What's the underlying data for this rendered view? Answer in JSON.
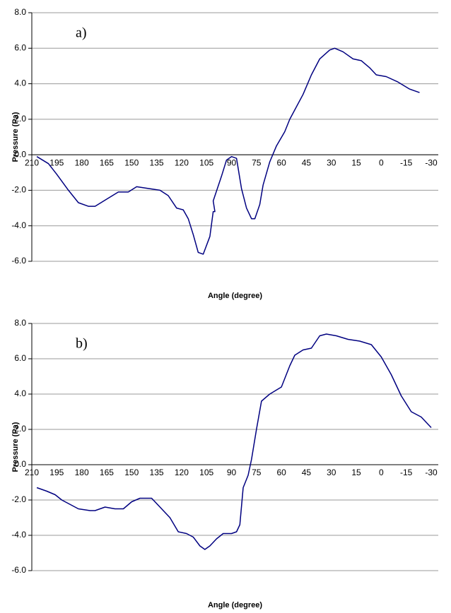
{
  "chart_data": [
    {
      "type": "line",
      "annotation": "a)",
      "xlabel": "Angle (degree)",
      "ylabel": "Pressure (Pa)",
      "color": "#000080",
      "grid": true,
      "xlim": [
        210,
        -30
      ],
      "ylim": [
        -6,
        8
      ],
      "xticks": [
        210,
        195,
        180,
        165,
        150,
        135,
        120,
        105,
        90,
        75,
        60,
        45,
        30,
        15,
        0,
        -15,
        -30
      ],
      "yticks": [
        {
          "value": 8,
          "label": "8.0"
        },
        {
          "value": 6,
          "label": "6.0"
        },
        {
          "value": 4,
          "label": "4.0"
        },
        {
          "value": 2,
          "label": "2.0"
        },
        {
          "value": 0,
          "label": "0.0"
        },
        {
          "value": -2,
          "label": "-2.0"
        },
        {
          "value": -4,
          "label": "-4.0"
        },
        {
          "value": -6,
          "label": "-6.0"
        }
      ],
      "x": [
        207,
        200,
        195,
        188,
        182,
        176,
        172,
        165,
        158,
        152,
        147,
        140,
        133,
        128,
        123,
        119,
        116,
        113,
        110,
        107,
        103,
        101,
        100,
        101,
        96,
        93,
        90,
        87,
        84,
        81,
        78,
        76,
        73,
        71,
        67,
        63,
        58,
        55,
        47,
        42,
        37,
        31,
        28,
        23,
        17,
        12,
        7,
        3,
        -3,
        -10,
        -17,
        -23
      ],
      "values": [
        -0.1,
        -0.5,
        -1.1,
        -2.0,
        -2.7,
        -2.9,
        -2.9,
        -2.5,
        -2.1,
        -2.1,
        -1.8,
        -1.9,
        -2.0,
        -2.3,
        -3.0,
        -3.1,
        -3.6,
        -4.5,
        -5.5,
        -5.6,
        -4.6,
        -3.2,
        -3.2,
        -2.6,
        -1.2,
        -0.3,
        -0.1,
        -0.2,
        -1.9,
        -3.0,
        -3.6,
        -3.6,
        -2.8,
        -1.7,
        -0.4,
        0.5,
        1.3,
        2.0,
        3.4,
        4.5,
        5.4,
        5.9,
        6.0,
        5.8,
        5.4,
        5.3,
        4.9,
        4.5,
        4.4,
        4.1,
        3.7,
        3.5
      ]
    },
    {
      "type": "line",
      "annotation": "b)",
      "xlabel": "Angle (degree)",
      "ylabel": "Pressure (Pa)",
      "color": "#000080",
      "grid": true,
      "xlim": [
        210,
        -30
      ],
      "ylim": [
        -6,
        8
      ],
      "xticks": [
        210,
        195,
        180,
        165,
        150,
        135,
        120,
        105,
        90,
        75,
        60,
        45,
        30,
        15,
        0,
        -15,
        -30
      ],
      "yticks": [
        {
          "value": 8,
          "label": "8.0"
        },
        {
          "value": 6,
          "label": "6.0"
        },
        {
          "value": 4,
          "label": "4.0"
        },
        {
          "value": 2,
          "label": "2.0"
        },
        {
          "value": 0,
          "label": "0.0"
        },
        {
          "value": -2,
          "label": "-2.0"
        },
        {
          "value": -4,
          "label": "-4.0"
        },
        {
          "value": -6,
          "label": "-6.0"
        }
      ],
      "x": [
        207,
        201,
        196,
        192,
        186,
        182,
        175,
        172,
        166,
        160,
        155,
        150,
        145,
        138,
        133,
        127,
        122,
        117,
        113,
        109,
        106,
        103,
        99,
        95,
        90,
        87,
        85,
        83,
        80,
        78,
        75,
        72,
        67,
        60,
        55,
        52,
        47,
        42,
        37,
        33,
        27,
        20,
        13,
        6,
        0,
        -6,
        -12,
        -18,
        -24,
        -30
      ],
      "values": [
        -1.3,
        -1.5,
        -1.7,
        -2.0,
        -2.3,
        -2.5,
        -2.6,
        -2.6,
        -2.4,
        -2.5,
        -2.5,
        -2.1,
        -1.9,
        -1.9,
        -2.4,
        -3.0,
        -3.8,
        -3.9,
        -4.1,
        -4.6,
        -4.8,
        -4.6,
        -4.2,
        -3.9,
        -3.9,
        -3.8,
        -3.4,
        -1.3,
        -0.6,
        0.3,
        2.0,
        3.6,
        4.0,
        4.4,
        5.6,
        6.2,
        6.5,
        6.6,
        7.3,
        7.4,
        7.3,
        7.1,
        7.0,
        6.8,
        6.1,
        5.1,
        3.9,
        3.0,
        2.7,
        2.1
      ]
    }
  ]
}
